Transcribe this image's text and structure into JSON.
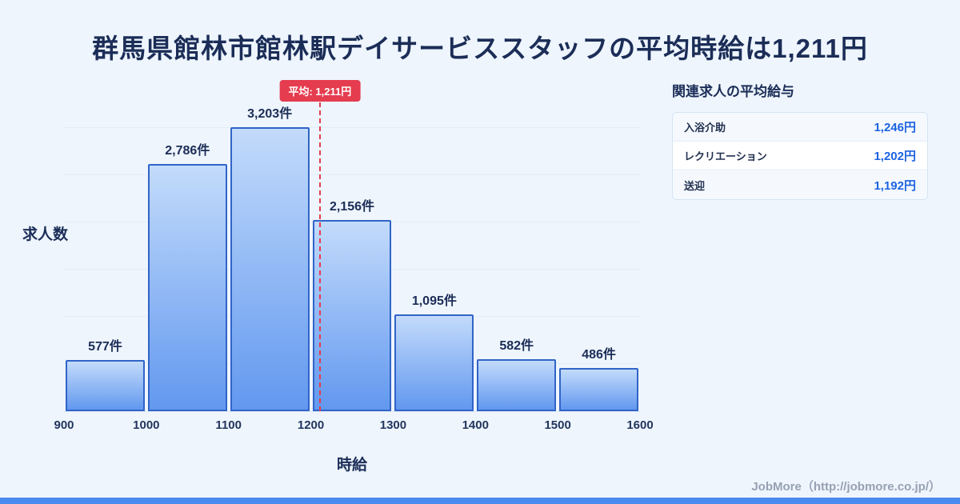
{
  "title": "群馬県館林市館林駅デイサービススタッフの平均時給は1,211円",
  "chart_data": {
    "type": "bar",
    "categories": [
      "900-1000",
      "1000-1100",
      "1100-1200",
      "1200-1300",
      "1300-1400",
      "1400-1500",
      "1500-1600"
    ],
    "values": [
      577,
      2786,
      3203,
      2156,
      1095,
      582,
      486
    ],
    "value_labels": [
      "577件",
      "2,786件",
      "3,203件",
      "2,156件",
      "1,095件",
      "582件",
      "486件"
    ],
    "x_ticks": [
      "900",
      "1000",
      "1100",
      "1200",
      "1300",
      "1400",
      "1500",
      "1600"
    ],
    "xlim": [
      900,
      1600
    ],
    "ylim": [
      0,
      3300
    ],
    "xlabel": "時給",
    "ylabel": "求人数",
    "average": 1211,
    "average_label": "平均: 1,211円",
    "grid": "horizontal-faint",
    "legend": "none"
  },
  "side_panel": {
    "title": "関連求人の平均給与",
    "rows": [
      {
        "label": "入浴介助",
        "value": "1,246円"
      },
      {
        "label": "レクリエーション",
        "value": "1,202円"
      },
      {
        "label": "送迎",
        "value": "1,192円"
      }
    ]
  },
  "footer": {
    "credit": "JobMore（http://jobmore.co.jp/）"
  },
  "colors": {
    "background": "#eef5fd",
    "title_color": "#1b2d57",
    "accent_red": "#e53c4f",
    "bar_top": "#c3dbfb",
    "bar_bottom": "#6298ef",
    "bar_border": "#3164c8",
    "value_blue": "#1d63e0",
    "bottom_strip": "#4a8bf0"
  }
}
